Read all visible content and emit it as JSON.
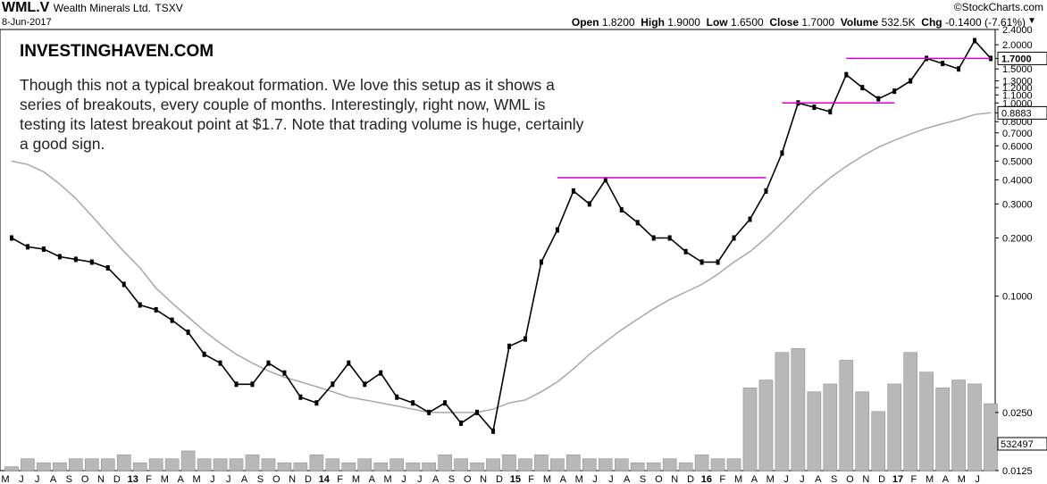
{
  "header": {
    "symbol": "WML.V",
    "name": "Wealth Minerals Ltd.",
    "exchange": "TSXV",
    "date": "8-Jun-2017",
    "brand": "©StockCharts.com",
    "open_label": "Open",
    "open": "1.8200",
    "high_label": "High",
    "high": "1.9000",
    "low_label": "Low",
    "low": "1.6500",
    "close_label": "Close",
    "close": "1.7000",
    "volume_label": "Volume",
    "volume": "532.5K",
    "chg_label": "Chg",
    "chg": "-0.1400 (-7.61%)"
  },
  "annotation": {
    "title": "INVESTINGHAVEN.COM",
    "text": "Though this not a typical breakout formation. We love this setup as it shows a series of breakouts, every couple of months. Interestingly, right now, WML is testing its latest breakout point at $1.7. Note that trading volume is huge, certainly a good sign."
  },
  "chart_data": {
    "type": "line",
    "y_scale": "log",
    "ylim": [
      0.0125,
      2.4
    ],
    "y_ticks": [
      "0.0125",
      "0.0250",
      "0.1000",
      "0.2000",
      "0.3000",
      "0.4000",
      "0.5000",
      "0.6000",
      "0.7000",
      "0.8000",
      "0.8883",
      "1.0000",
      "1.1000",
      "1.2000",
      "1.3000",
      "1.5000",
      "1.7000",
      "2.0000",
      "2.4000"
    ],
    "price_label": "1.7000",
    "ma_label": "0.8883",
    "volume_label": "532497",
    "x_month_labels": [
      "M",
      "J",
      "J",
      "A",
      "S",
      "O",
      "N",
      "D",
      "13",
      "F",
      "M",
      "A",
      "M",
      "J",
      "J",
      "A",
      "S",
      "O",
      "N",
      "D",
      "14",
      "F",
      "M",
      "A",
      "M",
      "J",
      "J",
      "A",
      "S",
      "O",
      "N",
      "D",
      "15",
      "F",
      "M",
      "A",
      "M",
      "J",
      "J",
      "A",
      "S",
      "O",
      "N",
      "D",
      "16",
      "F",
      "M",
      "A",
      "M",
      "J",
      "J",
      "A",
      "S",
      "O",
      "N",
      "D",
      "17",
      "F",
      "M",
      "A",
      "M",
      "J"
    ],
    "price_series": {
      "name": "WML.V",
      "x": [
        "2012-05",
        "2012-06",
        "2012-07",
        "2012-08",
        "2012-09",
        "2012-10",
        "2012-11",
        "2012-12",
        "2013-01",
        "2013-02",
        "2013-03",
        "2013-04",
        "2013-05",
        "2013-06",
        "2013-07",
        "2013-08",
        "2013-09",
        "2013-10",
        "2013-11",
        "2013-12",
        "2014-01",
        "2014-02",
        "2014-03",
        "2014-04",
        "2014-05",
        "2014-06",
        "2014-07",
        "2014-08",
        "2014-09",
        "2014-10",
        "2014-11",
        "2014-12",
        "2015-01",
        "2015-02",
        "2015-03",
        "2015-04",
        "2015-05",
        "2015-06",
        "2015-07",
        "2015-08",
        "2015-09",
        "2015-10",
        "2015-11",
        "2015-12",
        "2016-01",
        "2016-02",
        "2016-03",
        "2016-04",
        "2016-05",
        "2016-06",
        "2016-07",
        "2016-08",
        "2016-09",
        "2016-10",
        "2016-11",
        "2016-12",
        "2017-01",
        "2017-02",
        "2017-03",
        "2017-04",
        "2017-05",
        "2017-06"
      ],
      "values": [
        0.2,
        0.18,
        0.175,
        0.16,
        0.155,
        0.15,
        0.14,
        0.115,
        0.09,
        0.085,
        0.075,
        0.065,
        0.05,
        0.045,
        0.035,
        0.035,
        0.045,
        0.04,
        0.03,
        0.028,
        0.035,
        0.045,
        0.035,
        0.04,
        0.03,
        0.028,
        0.025,
        0.028,
        0.022,
        0.025,
        0.02,
        0.055,
        0.06,
        0.15,
        0.22,
        0.35,
        0.3,
        0.4,
        0.28,
        0.24,
        0.2,
        0.2,
        0.17,
        0.15,
        0.15,
        0.2,
        0.25,
        0.35,
        0.55,
        1.0,
        0.95,
        0.9,
        1.4,
        1.2,
        1.05,
        1.15,
        1.3,
        1.7,
        1.6,
        1.5,
        2.1,
        1.7
      ]
    },
    "moving_average": {
      "values": [
        0.5,
        0.48,
        0.44,
        0.38,
        0.32,
        0.26,
        0.21,
        0.17,
        0.14,
        0.11,
        0.092,
        0.078,
        0.066,
        0.057,
        0.05,
        0.045,
        0.041,
        0.038,
        0.036,
        0.034,
        0.032,
        0.03,
        0.029,
        0.028,
        0.027,
        0.026,
        0.025,
        0.025,
        0.025,
        0.025,
        0.026,
        0.028,
        0.029,
        0.032,
        0.036,
        0.042,
        0.05,
        0.058,
        0.067,
        0.076,
        0.086,
        0.096,
        0.105,
        0.115,
        0.13,
        0.15,
        0.17,
        0.2,
        0.24,
        0.29,
        0.35,
        0.41,
        0.47,
        0.53,
        0.59,
        0.64,
        0.69,
        0.74,
        0.78,
        0.82,
        0.87,
        0.89
      ]
    },
    "volume": [
      0.1,
      0.3,
      0.2,
      0.2,
      0.3,
      0.3,
      0.3,
      0.4,
      0.2,
      0.3,
      0.3,
      0.5,
      0.3,
      0.3,
      0.3,
      0.4,
      0.3,
      0.2,
      0.2,
      0.4,
      0.3,
      0.2,
      0.3,
      0.2,
      0.3,
      0.2,
      0.2,
      0.4,
      0.3,
      0.2,
      0.3,
      0.4,
      0.3,
      0.4,
      0.3,
      0.4,
      0.3,
      0.3,
      0.3,
      0.2,
      0.2,
      0.3,
      0.2,
      0.4,
      0.3,
      0.3,
      2.1,
      2.3,
      3.0,
      3.1,
      2.0,
      2.2,
      2.8,
      2.0,
      1.5,
      2.2,
      3.0,
      2.5,
      2.1,
      2.3,
      2.2,
      1.7
    ],
    "breakout_lines": [
      {
        "value": 0.41,
        "from": "2015-03",
        "to": "2016-04"
      },
      {
        "value": 1.0,
        "from": "2016-05",
        "to": "2016-12"
      },
      {
        "value": 1.7,
        "from": "2016-09",
        "to": "2017-06"
      }
    ],
    "colors": {
      "breakout": "#d400d4",
      "price": "#000000",
      "ma": "#a8a8a8",
      "volume": "#b8b8b8"
    }
  }
}
